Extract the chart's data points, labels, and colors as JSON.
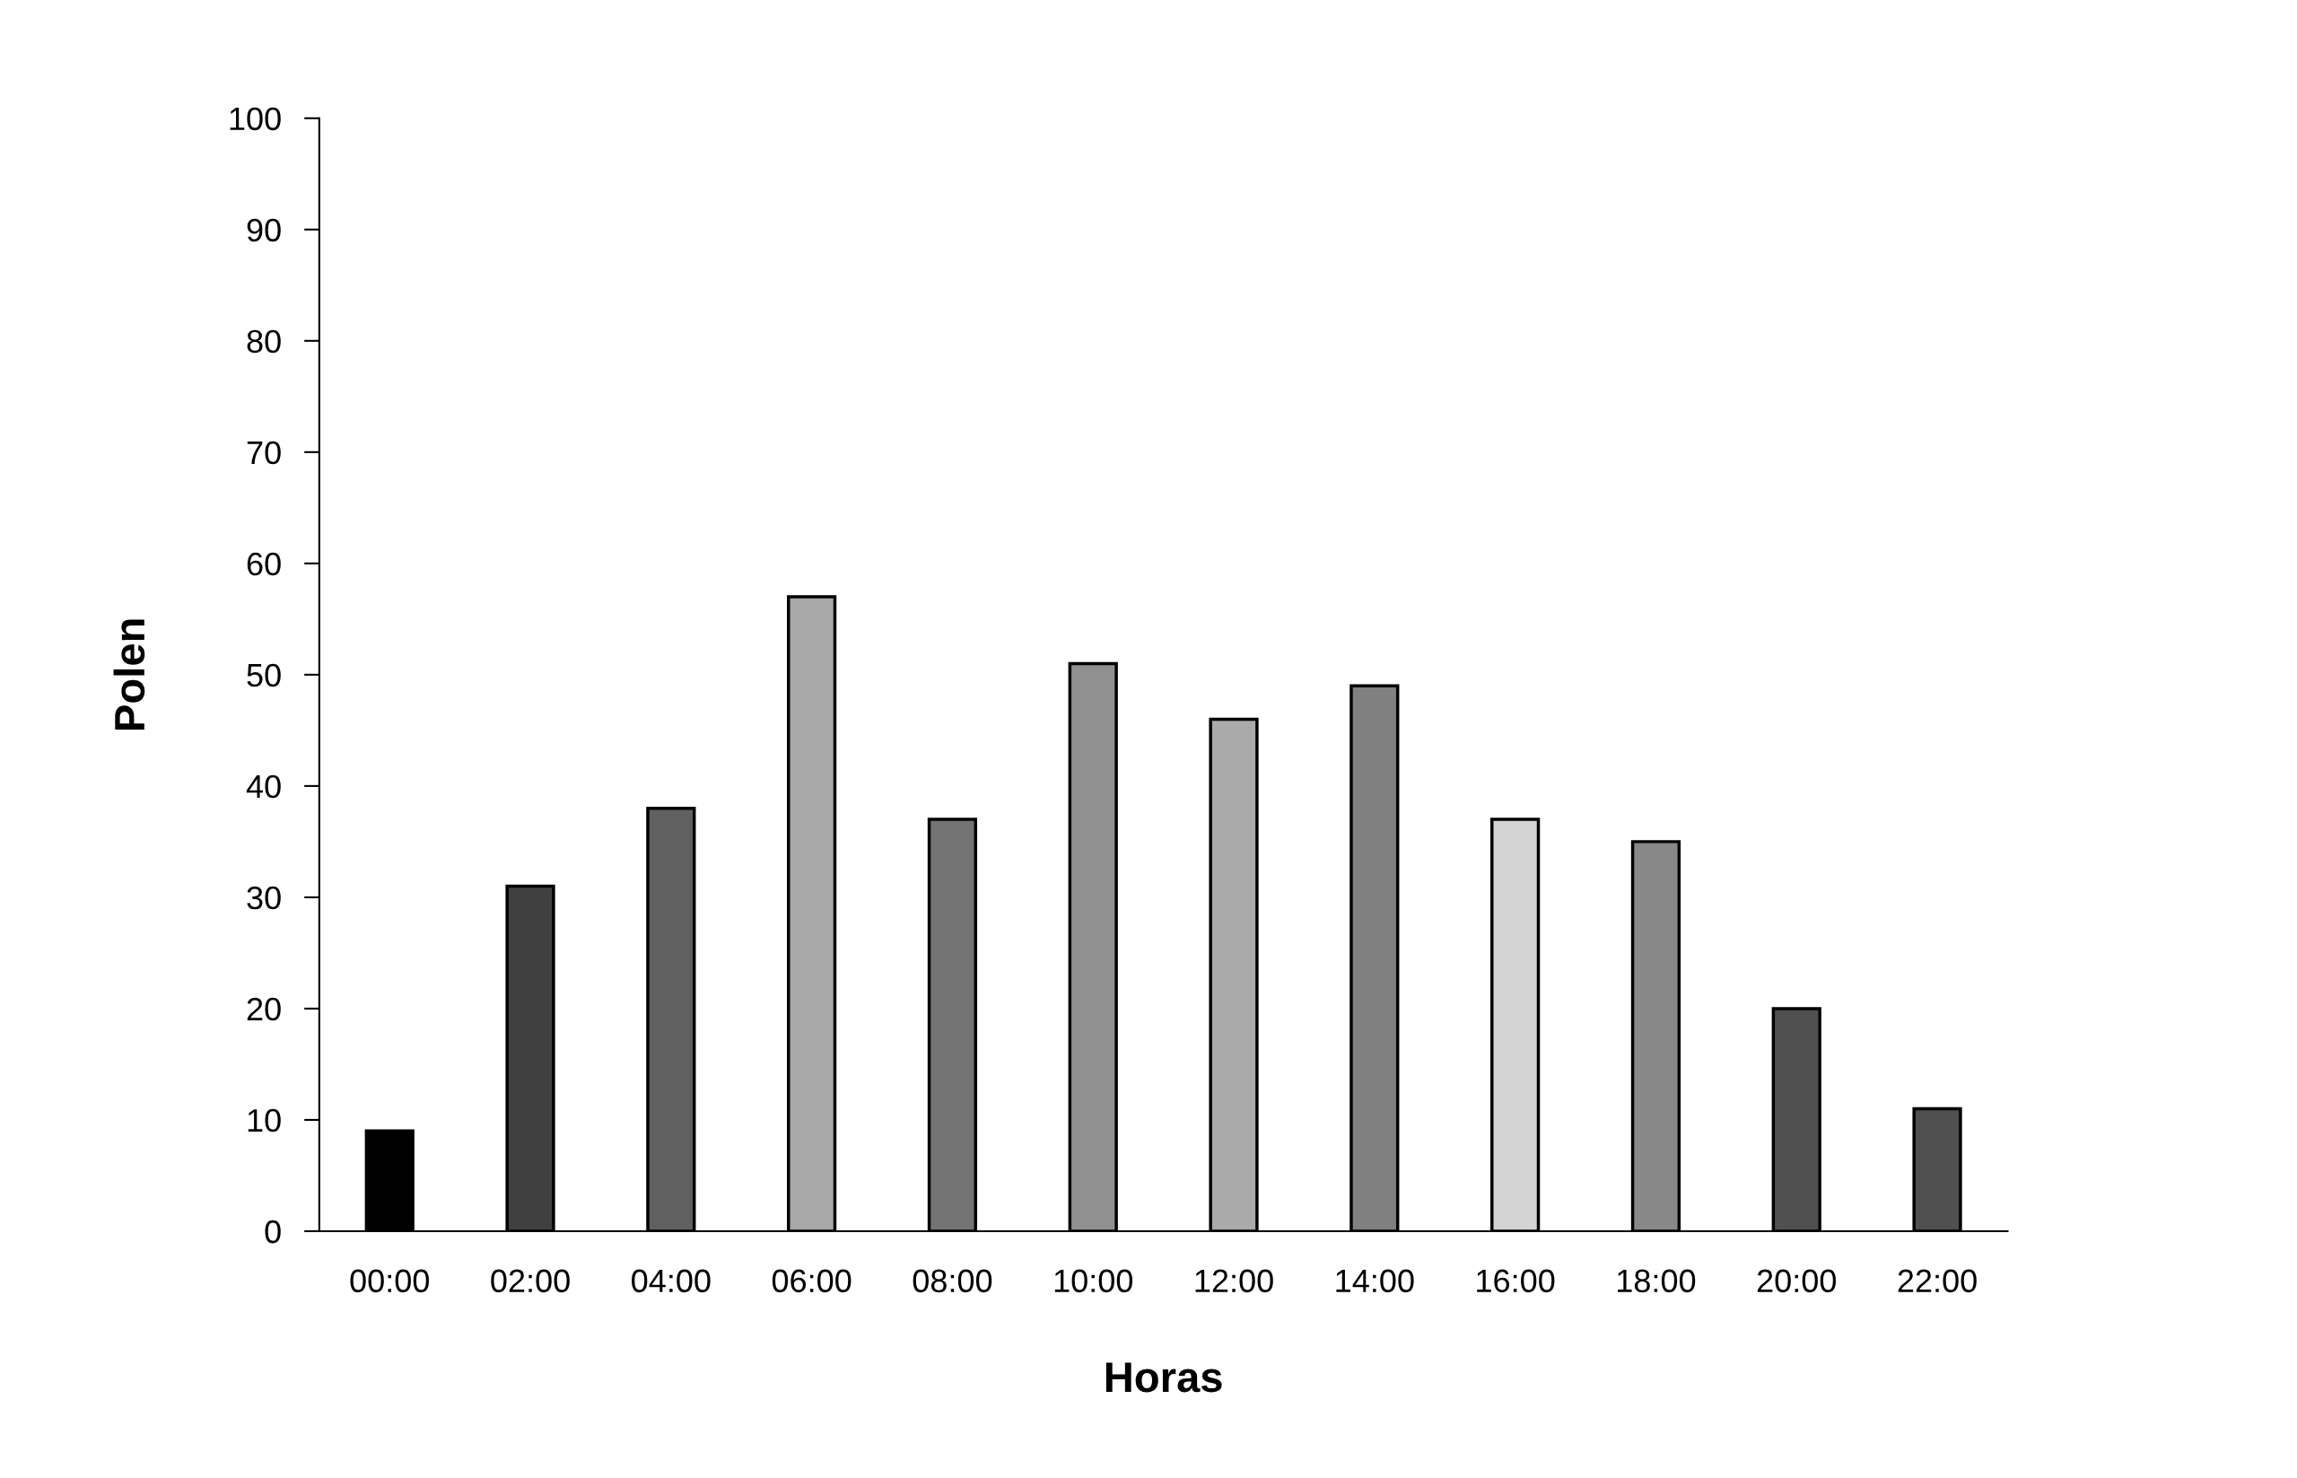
{
  "chart_data": {
    "type": "bar",
    "xlabel": "Horas",
    "ylabel": "Polen",
    "categories": [
      "00:00",
      "02:00",
      "04:00",
      "06:00",
      "08:00",
      "10:00",
      "12:00",
      "14:00",
      "16:00",
      "18:00",
      "20:00",
      "22:00"
    ],
    "values": [
      9,
      31,
      38,
      57,
      37,
      51,
      46,
      49,
      37,
      35,
      20,
      11
    ],
    "colors": [
      "#000000",
      "#404040",
      "#606060",
      "#a8a8a8",
      "#747474",
      "#909090",
      "#aaaaaa",
      "#808080",
      "#d4d4d4",
      "#888888",
      "#505050",
      "#505050"
    ],
    "ylim": [
      0,
      100
    ],
    "yticks": [
      0,
      10,
      20,
      30,
      40,
      50,
      60,
      70,
      80,
      90,
      100
    ],
    "grid": false,
    "legend": false
  }
}
